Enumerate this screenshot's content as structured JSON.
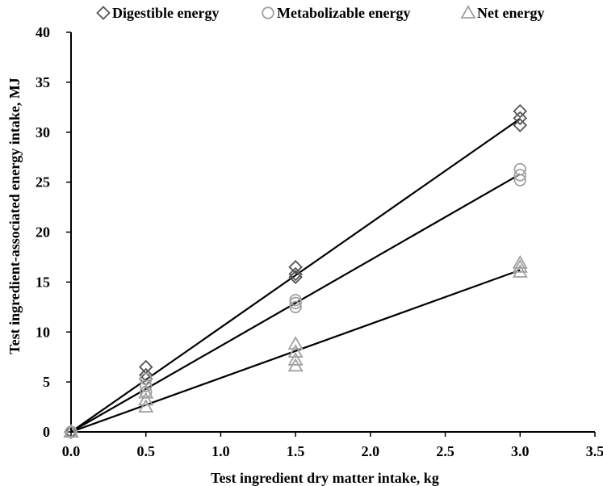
{
  "chart_data": {
    "type": "scatter",
    "title": "",
    "xlabel": "Test ingredient dry matter intake, kg",
    "ylabel": "Test ingredient-associated energy intake, MJ",
    "xlim": [
      0,
      3.5
    ],
    "ylim": [
      0,
      40
    ],
    "x_ticks": [
      "0.0",
      "0.5",
      "1.0",
      "1.5",
      "2.0",
      "2.5",
      "3.0",
      "3.5"
    ],
    "y_ticks": [
      "0",
      "5",
      "10",
      "15",
      "20",
      "25",
      "30",
      "35",
      "40"
    ],
    "grid": false,
    "legend_position": "top",
    "series": [
      {
        "name": "Digestible energy",
        "marker": "diamond",
        "color": "#555555",
        "points": [
          [
            0.0,
            0.0
          ],
          [
            0.0,
            0.0
          ],
          [
            0.0,
            0.0
          ],
          [
            0.5,
            6.5
          ],
          [
            0.5,
            5.7
          ],
          [
            0.5,
            5.3
          ],
          [
            1.5,
            16.5
          ],
          [
            1.5,
            15.8
          ],
          [
            1.5,
            15.5
          ],
          [
            3.0,
            32.1
          ],
          [
            3.0,
            31.4
          ],
          [
            3.0,
            30.7
          ]
        ],
        "fit_slope": 10.45
      },
      {
        "name": "Metabolizable energy",
        "marker": "circle",
        "color": "#a0a0a0",
        "points": [
          [
            0.0,
            0.0
          ],
          [
            0.0,
            0.0
          ],
          [
            0.0,
            0.0
          ],
          [
            0.5,
            5.3
          ],
          [
            0.5,
            4.6
          ],
          [
            0.5,
            4.0
          ],
          [
            1.5,
            13.2
          ],
          [
            1.5,
            12.9
          ],
          [
            1.5,
            12.5
          ],
          [
            3.0,
            26.3
          ],
          [
            3.0,
            25.7
          ],
          [
            3.0,
            25.2
          ]
        ],
        "fit_slope": 8.6
      },
      {
        "name": "Net energy",
        "marker": "triangle",
        "color": "#a0a0a0",
        "points": [
          [
            0.0,
            0.0
          ],
          [
            0.0,
            0.0
          ],
          [
            0.0,
            0.0
          ],
          [
            0.5,
            3.9
          ],
          [
            0.5,
            3.2
          ],
          [
            0.5,
            2.5
          ],
          [
            1.5,
            8.8
          ],
          [
            1.5,
            8.0
          ],
          [
            1.5,
            7.2
          ],
          [
            1.5,
            6.6
          ],
          [
            3.0,
            16.9
          ],
          [
            3.0,
            16.5
          ],
          [
            3.0,
            16.0
          ]
        ],
        "fit_slope": 5.4
      }
    ]
  }
}
